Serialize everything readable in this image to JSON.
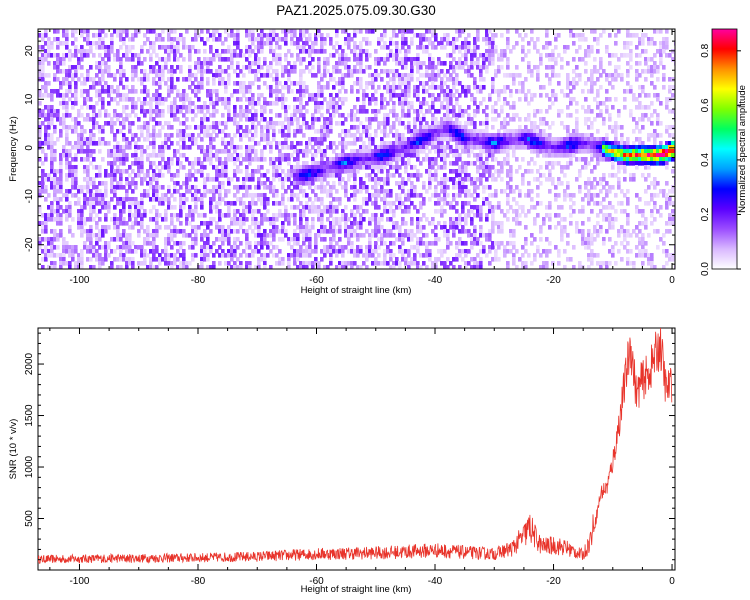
{
  "title": "PAZ1.2025.075.09.30.G30",
  "chart_data": [
    {
      "type": "heatmap",
      "name": "spectrogram",
      "xlabel": "Height of straight line (km)",
      "ylabel": "Frequency (Hz)",
      "xlim": [
        -107,
        0.5
      ],
      "ylim": [
        -25,
        24.5
      ],
      "xticks": [
        -100,
        -80,
        -60,
        -40,
        -20,
        0
      ],
      "yticks": [
        -20,
        -10,
        0,
        10,
        20
      ],
      "colorbar": {
        "label": "Normalized spectral amplitude",
        "range": [
          0,
          0.88
        ],
        "ticks": [
          0.0,
          0.2,
          0.4,
          0.6,
          0.8
        ],
        "ticklabels": [
          "0.0",
          "0.2",
          "0.4",
          "0.6",
          "0.8"
        ],
        "colors": [
          "#ffffff",
          "#d9b8ff",
          "#9b4dff",
          "#5a00ff",
          "#0000ff",
          "#00a0ff",
          "#00ffff",
          "#00ff60",
          "#80ff00",
          "#ffff00",
          "#ff9000",
          "#ff0000",
          "#ff00a0"
        ]
      },
      "dominant_ridge": {
        "description_points_km_hz": [
          [
            -63,
            -6
          ],
          [
            -60,
            -5
          ],
          [
            -55,
            -3
          ],
          [
            -50,
            -2
          ],
          [
            -45,
            0
          ],
          [
            -40,
            3
          ],
          [
            -38,
            4
          ],
          [
            -35,
            2
          ],
          [
            -30,
            1
          ],
          [
            -25,
            2
          ],
          [
            -20,
            0
          ],
          [
            -15,
            1
          ],
          [
            -12,
            0
          ],
          [
            -8,
            -1.5
          ],
          [
            -5,
            -1.5
          ],
          [
            -2,
            -1.5
          ],
          [
            0,
            -0.5
          ]
        ],
        "peak_amplitude": 0.88
      }
    },
    {
      "type": "line",
      "name": "snr",
      "xlabel": "Height of straight line (km)",
      "ylabel": "SNR (10 * v/v)",
      "xlim": [
        -107,
        0.5
      ],
      "ylim": [
        0,
        2350
      ],
      "xticks": [
        -100,
        -80,
        -60,
        -40,
        -20,
        0
      ],
      "yticks": [
        500,
        1000,
        1500,
        2000
      ],
      "color": "#e8332a",
      "series": [
        {
          "name": "SNR",
          "x": [
            -107,
            -100,
            -90,
            -80,
            -70,
            -60,
            -50,
            -45,
            -40,
            -35,
            -30,
            -27,
            -25,
            -24,
            -23,
            -22,
            -20,
            -18,
            -16,
            -15,
            -14,
            -13,
            -12,
            -11,
            -10,
            -9,
            -8,
            -7,
            -6,
            -5,
            -4,
            -3,
            -2,
            -1,
            0
          ],
          "y": [
            100,
            105,
            110,
            115,
            125,
            150,
            160,
            170,
            185,
            165,
            150,
            200,
            320,
            400,
            300,
            220,
            230,
            210,
            160,
            140,
            250,
            450,
            750,
            800,
            1050,
            1400,
            1800,
            2200,
            1700,
            1850,
            1900,
            2050,
            2200,
            1750,
            1800
          ]
        }
      ]
    }
  ]
}
